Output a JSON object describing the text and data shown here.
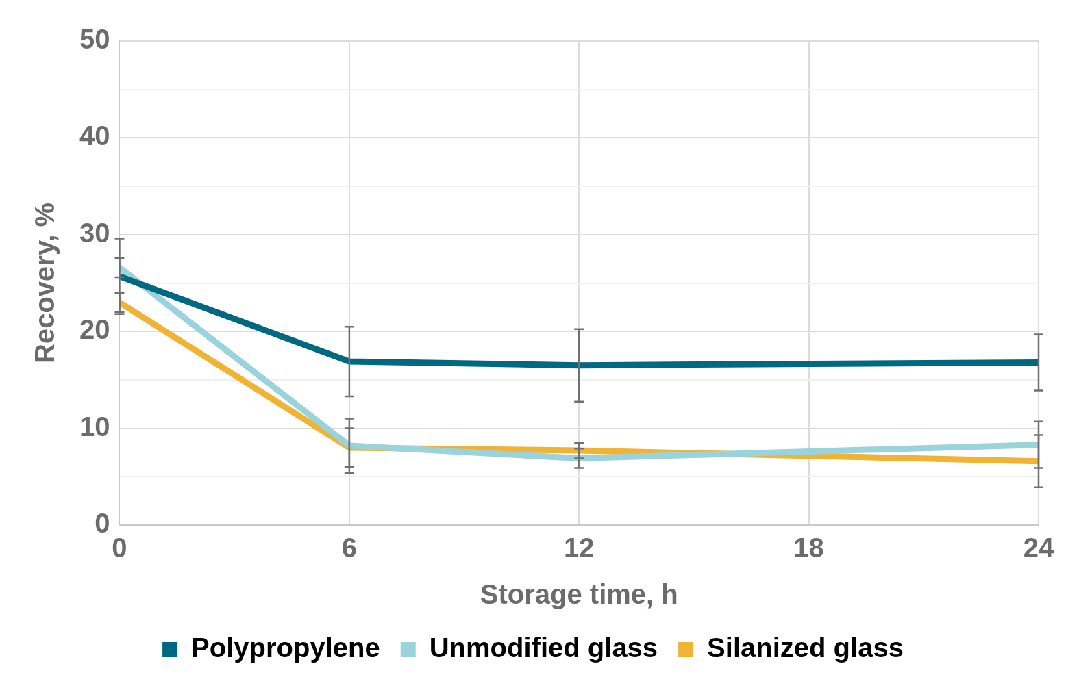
{
  "chart_data": {
    "type": "line",
    "xlabel": "Storage time, h",
    "ylabel": "Recovery, %",
    "x": [
      0,
      6,
      12,
      24
    ],
    "series": [
      {
        "name": "Polypropylene",
        "color": "#006880",
        "values": [
          25.7,
          16.9,
          16.5,
          16.8
        ],
        "errors": [
          3.9,
          3.6,
          3.75,
          2.9
        ]
      },
      {
        "name": "Unmodified glass",
        "color": "#9ad3dc",
        "values": [
          26.6,
          8.2,
          6.9,
          8.3
        ],
        "errors": [
          1.0,
          2.8,
          1.0,
          2.4
        ]
      },
      {
        "name": "Silanized glass",
        "color": "#f0b334",
        "values": [
          23.0,
          8.0,
          7.7,
          6.6
        ],
        "errors": [
          1.0,
          2.0,
          0.8,
          2.7
        ]
      }
    ],
    "xlim": [
      0,
      24
    ],
    "xticks": [
      0,
      6,
      12,
      18,
      24
    ],
    "ylim": [
      0,
      50
    ],
    "yticks": [
      0,
      {
        "value": 5,
        "label": null
      },
      10,
      {
        "value": 15,
        "label": null
      },
      20,
      {
        "value": 25,
        "label": null
      },
      30,
      {
        "value": 35,
        "label": null
      },
      40,
      {
        "value": 45,
        "label": null
      },
      50
    ],
    "grid": true,
    "legend": "bottom",
    "marker": "none",
    "line_style": "solid"
  }
}
